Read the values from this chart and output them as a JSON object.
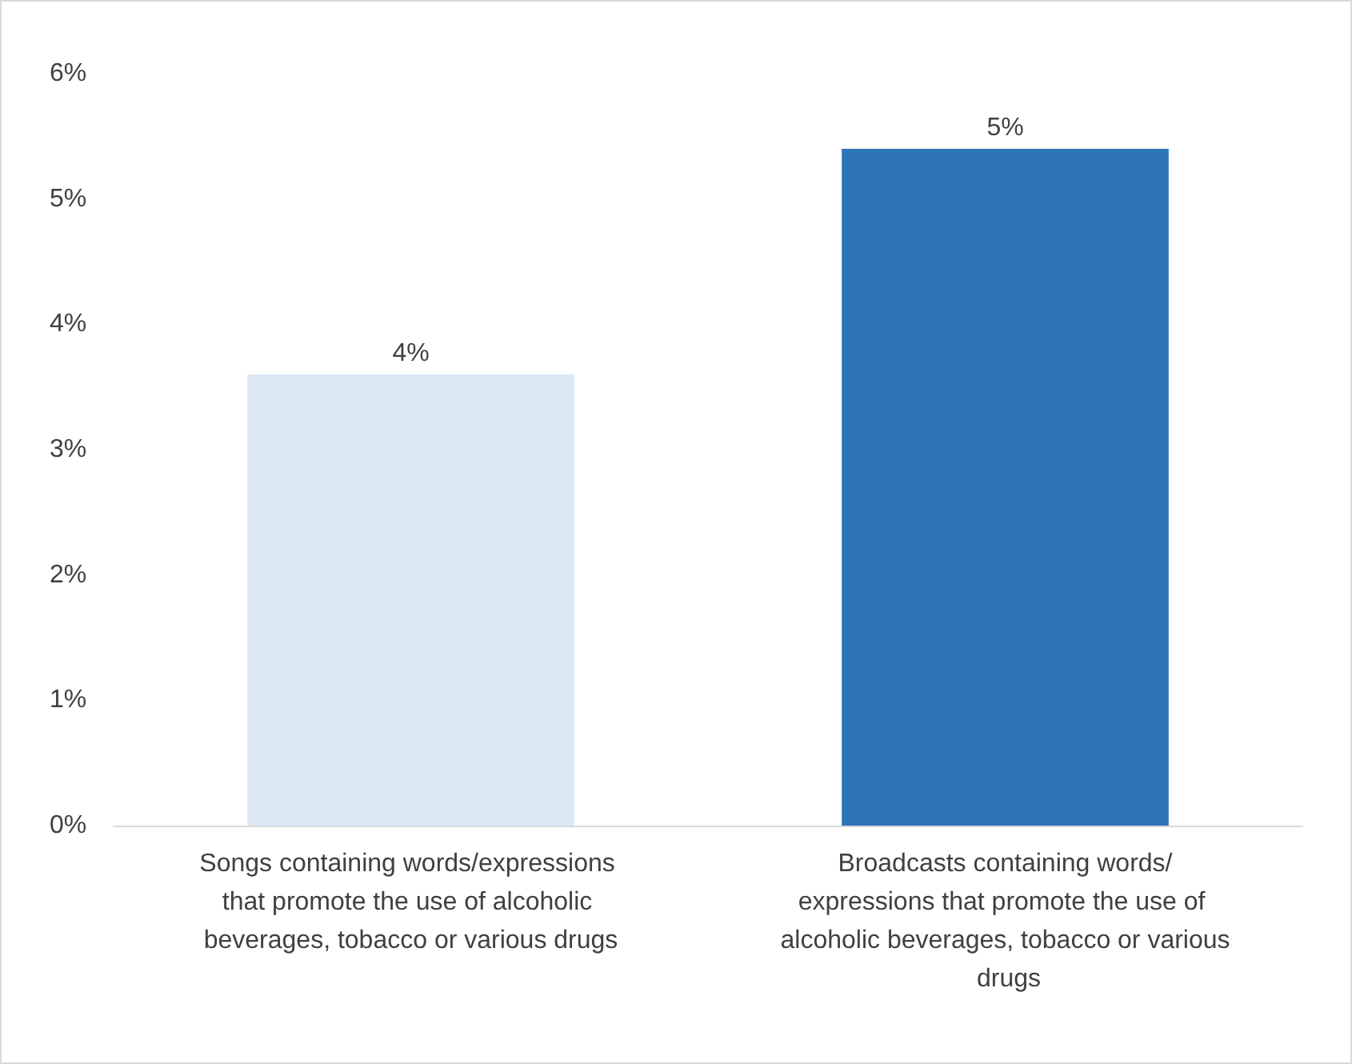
{
  "chart_data": {
    "type": "bar",
    "categories": [
      "Songs containing words/expressions that promote the use of alcoholic beverages, tobacco or various drugs",
      "Broadcasts containing words/expressions that promote the use of alcoholic beverages, tobacco or various drugs"
    ],
    "values": [
      3.6,
      5.4
    ],
    "colors": [
      "#dde8f5",
      "#2e75b6"
    ],
    "value_labels": [
      "4%",
      "5%"
    ],
    "ylim": [
      0,
      6
    ],
    "yticks": [
      {
        "value": 0,
        "label": "0%"
      },
      {
        "value": 1,
        "label": "1%"
      },
      {
        "value": 2,
        "label": "2%"
      },
      {
        "value": 3,
        "label": "3%"
      },
      {
        "value": 4,
        "label": "4%"
      },
      {
        "value": 5,
        "label": "5%"
      },
      {
        "value": 6,
        "label": "6%"
      }
    ]
  }
}
